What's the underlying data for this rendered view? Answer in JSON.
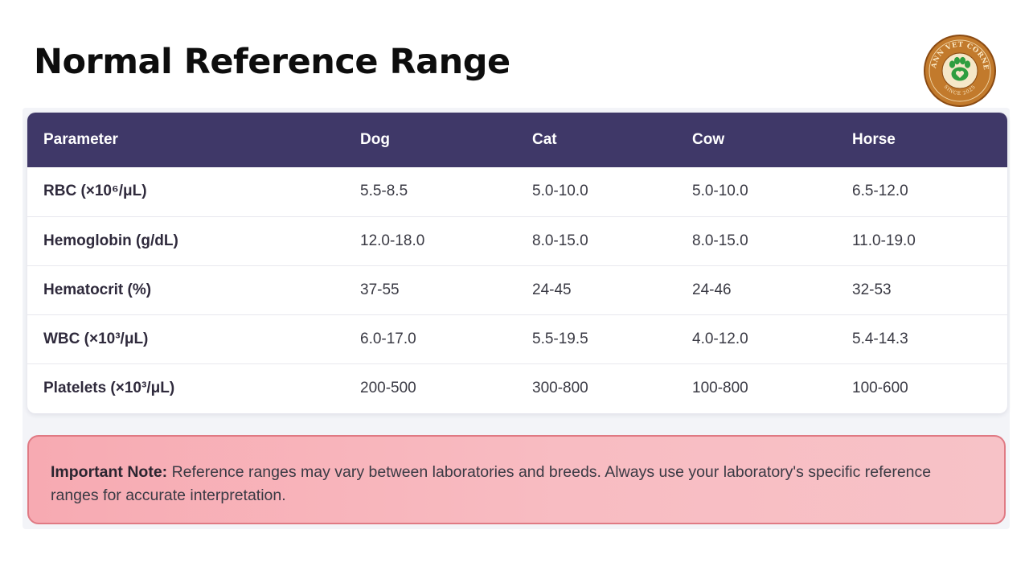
{
  "page": {
    "title": "Normal Reference Range"
  },
  "logo": {
    "text_top": "MANN VET CORNER",
    "text_bottom": "SINCE 2025",
    "icon": "paw-heart-icon",
    "colors": {
      "outer": "#b5651d",
      "inner": "#c27a2c",
      "paw": "#2e9e3f"
    }
  },
  "table": {
    "headers": [
      "Parameter",
      "Dog",
      "Cat",
      "Cow",
      "Horse"
    ],
    "rows": [
      {
        "parameter": "RBC (×10⁶/μL)",
        "dog": "5.5-8.5",
        "cat": "5.0-10.0",
        "cow": "5.0-10.0",
        "horse": "6.5-12.0"
      },
      {
        "parameter": "Hemoglobin (g/dL)",
        "dog": "12.0-18.0",
        "cat": "8.0-15.0",
        "cow": "8.0-15.0",
        "horse": "11.0-19.0"
      },
      {
        "parameter": "Hematocrit (%)",
        "dog": "37-55",
        "cat": "24-45",
        "cow": "24-46",
        "horse": "32-53"
      },
      {
        "parameter": "WBC (×10³/μL)",
        "dog": "6.0-17.0",
        "cat": "5.5-19.5",
        "cow": "4.0-12.0",
        "horse": "5.4-14.3"
      },
      {
        "parameter": "Platelets (×10³/μL)",
        "dog": "200-500",
        "cat": "300-800",
        "cow": "100-800",
        "horse": "100-600"
      }
    ],
    "colors": {
      "header_bg": "#3f3868"
    }
  },
  "note": {
    "label": "Important Note:",
    "text": " Reference ranges may vary between laboratories and breeds. Always use your laboratory's specific reference ranges for accurate interpretation.",
    "colors": {
      "background": "#f7b3ba",
      "border": "#e07a84"
    }
  }
}
